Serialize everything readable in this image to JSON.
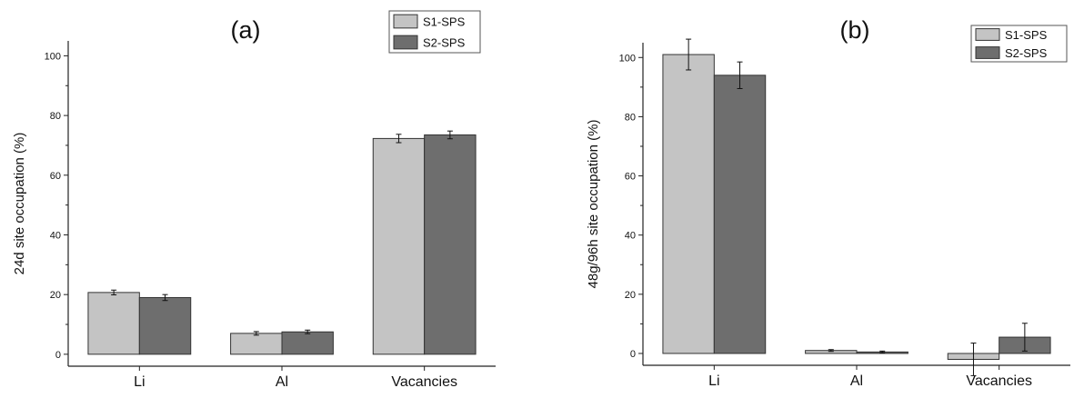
{
  "chart_data": [
    {
      "type": "bar",
      "title": "(a)",
      "xlabel": "",
      "ylabel": "24d site occupation (%)",
      "categories": [
        "Li",
        "Al",
        "Vacancies"
      ],
      "ylim": [
        -4,
        105
      ],
      "yticks": [
        0,
        20,
        40,
        60,
        80,
        100
      ],
      "yticks_labels": [
        "0",
        "20",
        "40",
        "60",
        "80",
        "100"
      ],
      "grid": false,
      "legend_position": "top-right",
      "series": [
        {
          "name": "S1-SPS",
          "color": "#c4c4c4",
          "values": [
            20.7,
            7.0,
            72.3
          ],
          "errors": [
            0.8,
            0.6,
            1.4
          ]
        },
        {
          "name": "S2-SPS",
          "color": "#6e6e6e",
          "values": [
            19.0,
            7.5,
            73.5
          ],
          "errors": [
            1.0,
            0.6,
            1.3
          ]
        }
      ]
    },
    {
      "type": "bar",
      "title": "(b)",
      "xlabel": "",
      "ylabel": "48g/96h site occupation (%)",
      "categories": [
        "Li",
        "Al",
        "Vacancies"
      ],
      "ylim": [
        -4,
        105
      ],
      "yticks": [
        0,
        20,
        40,
        60,
        80,
        100
      ],
      "yticks_labels": [
        "0",
        "20",
        "40",
        "60",
        "80",
        "100"
      ],
      "grid": false,
      "legend_position": "top-right",
      "series": [
        {
          "name": "S1-SPS",
          "color": "#c4c4c4",
          "values": [
            101.0,
            1.0,
            -2.0
          ],
          "errors": [
            5.2,
            0.3,
            5.5
          ]
        },
        {
          "name": "S2-SPS",
          "color": "#6e6e6e",
          "values": [
            94.0,
            0.5,
            5.5
          ],
          "errors": [
            4.5,
            0.3,
            4.7
          ]
        }
      ]
    }
  ]
}
